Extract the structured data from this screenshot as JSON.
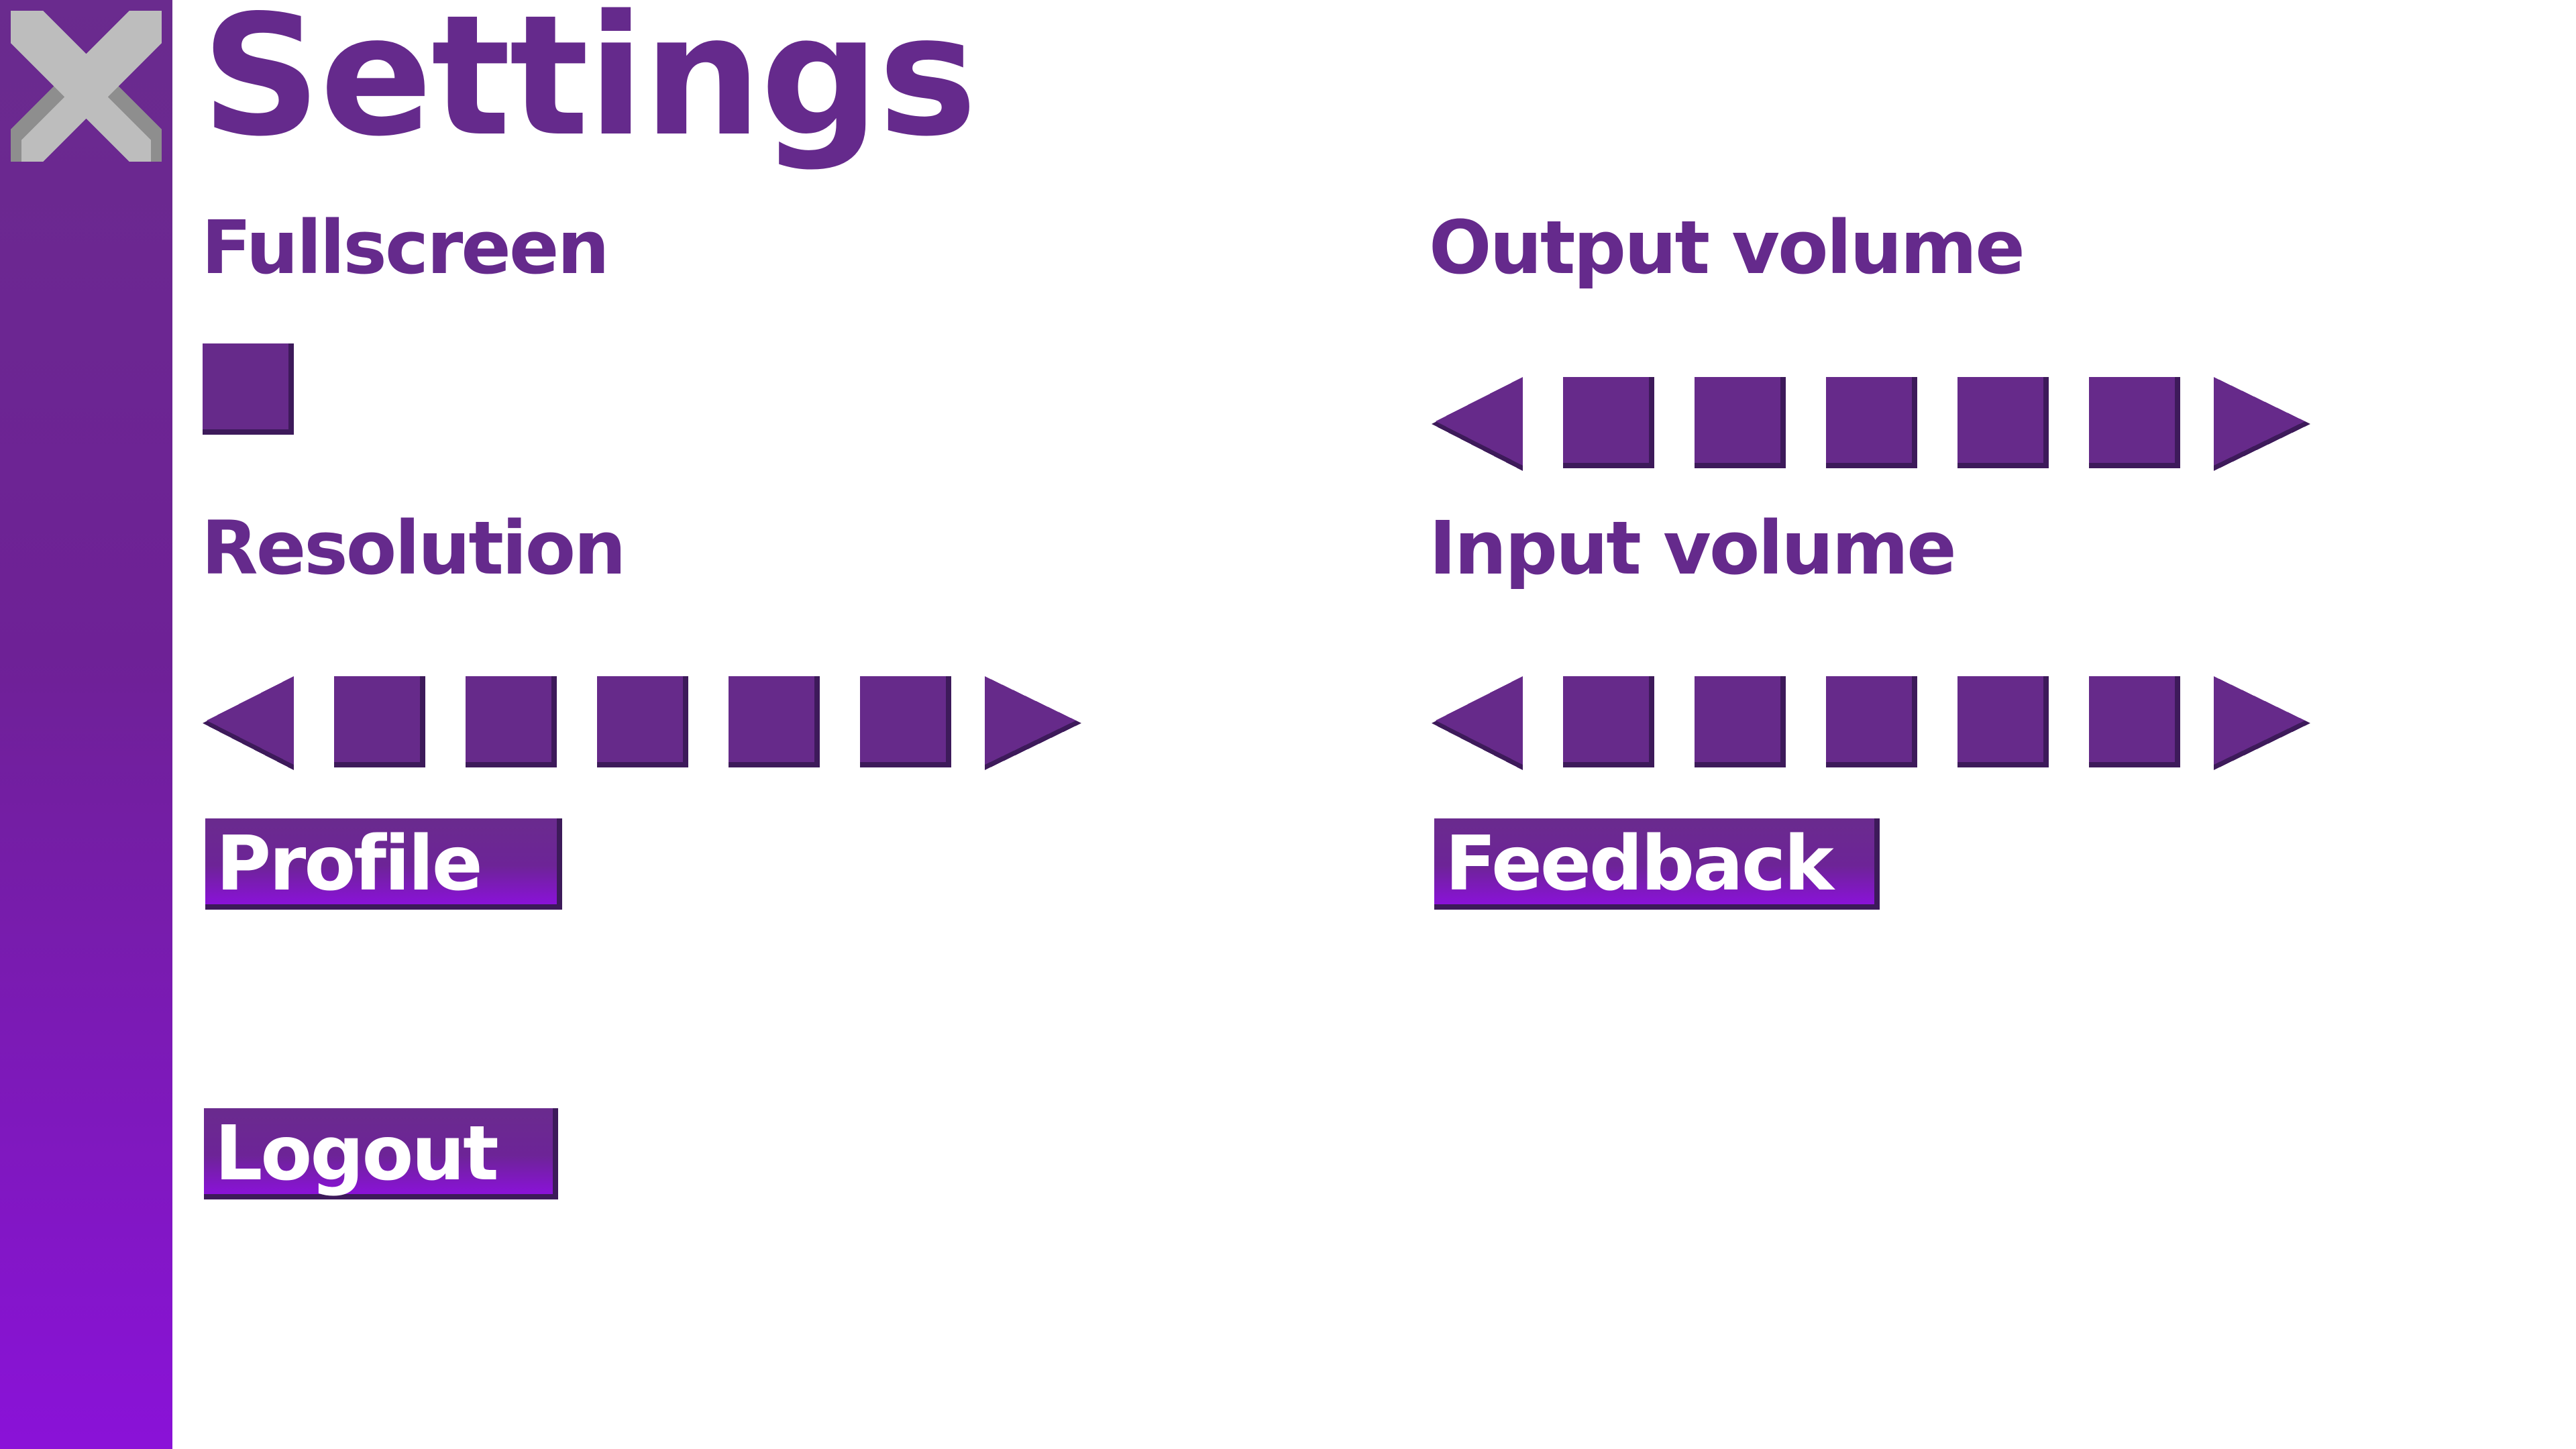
{
  "title": "Settings",
  "close_icon": "close-x-icon",
  "labels": {
    "fullscreen": "Fullscreen",
    "resolution": "Resolution",
    "output_volume": "Output volume",
    "input_volume": "Input volume"
  },
  "fullscreen_checked": false,
  "steppers": {
    "resolution": {
      "segments": 5,
      "left_icon": "arrow-left-icon",
      "right_icon": "arrow-right-icon"
    },
    "output_volume": {
      "segments": 5,
      "left_icon": "arrow-left-icon",
      "right_icon": "arrow-right-icon"
    },
    "input_volume": {
      "segments": 5,
      "left_icon": "arrow-left-icon",
      "right_icon": "arrow-right-icon"
    }
  },
  "buttons": {
    "profile": "Profile",
    "feedback": "Feedback",
    "logout": "Logout"
  },
  "colors": {
    "primary": "#652a8c",
    "accent": "#8a12d8",
    "close_icon": "#bdbdbd"
  }
}
